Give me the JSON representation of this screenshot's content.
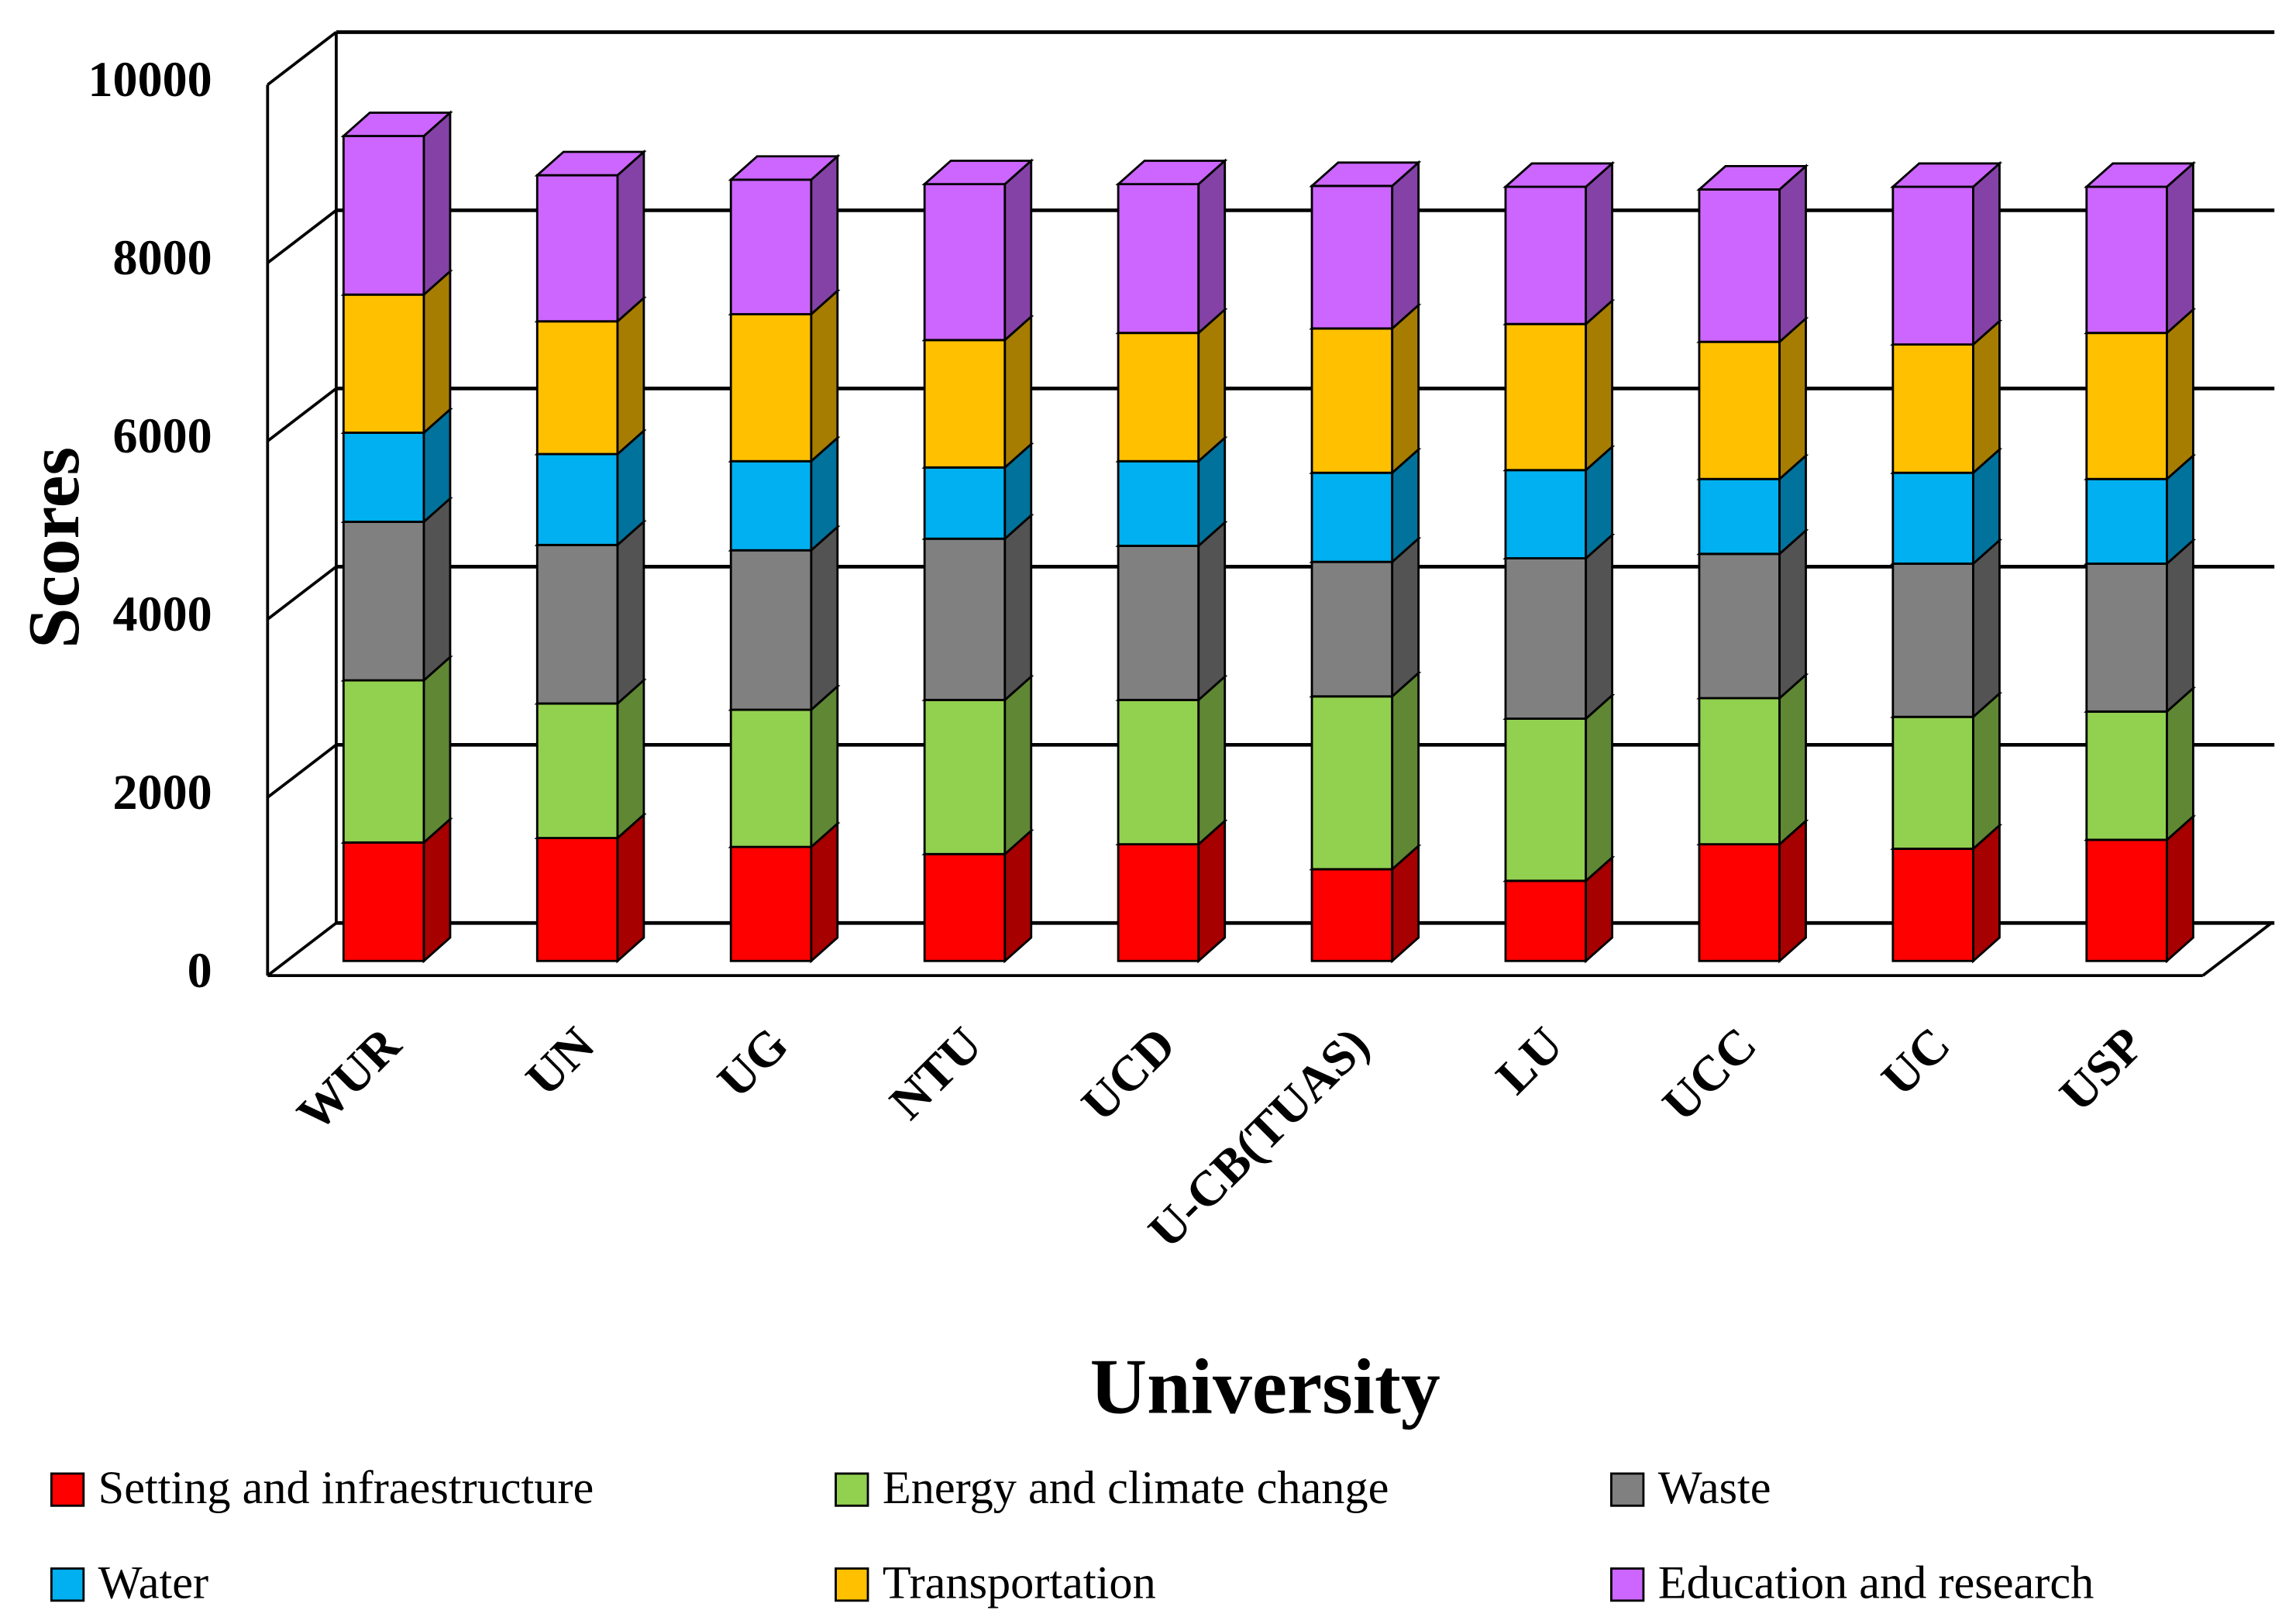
{
  "chart_data": {
    "type": "stacked_bar_3d",
    "y_label": "Scores",
    "x_label": "University",
    "categories": [
      "WUR",
      "UN",
      "UG",
      "NTU",
      "UCD",
      "U-CB(TUAS)",
      "LU",
      "UCC",
      "UC",
      "USP"
    ],
    "series": [
      {
        "name": "Setting and infraestructure",
        "color": "#ff0000",
        "values": [
          1330,
          1380,
          1280,
          1200,
          1310,
          1030,
          900,
          1310,
          1260,
          1360
        ]
      },
      {
        "name": "Energy and climate change",
        "color": "#92d050",
        "values": [
          1820,
          1510,
          1540,
          1730,
          1620,
          1940,
          1820,
          1640,
          1480,
          1440
        ]
      },
      {
        "name": "Waste",
        "color": "#808080",
        "values": [
          1780,
          1780,
          1790,
          1810,
          1730,
          1510,
          1800,
          1620,
          1720,
          1660
        ]
      },
      {
        "name": "Water",
        "color": "#00b0f0",
        "values": [
          1000,
          1020,
          1000,
          800,
          950,
          1000,
          990,
          840,
          1020,
          950
        ]
      },
      {
        "name": "Transportation",
        "color": "#ffc000",
        "values": [
          1550,
          1490,
          1650,
          1430,
          1440,
          1620,
          1640,
          1540,
          1440,
          1640
        ]
      },
      {
        "name": "Education and research",
        "color": "#cc66ff",
        "values": [
          1780,
          1640,
          1510,
          1750,
          1670,
          1600,
          1540,
          1710,
          1770,
          1640
        ]
      }
    ],
    "ylim": [
      0,
      10000
    ],
    "yticks": [
      0,
      2000,
      4000,
      6000,
      8000,
      10000
    ],
    "grid": true
  }
}
